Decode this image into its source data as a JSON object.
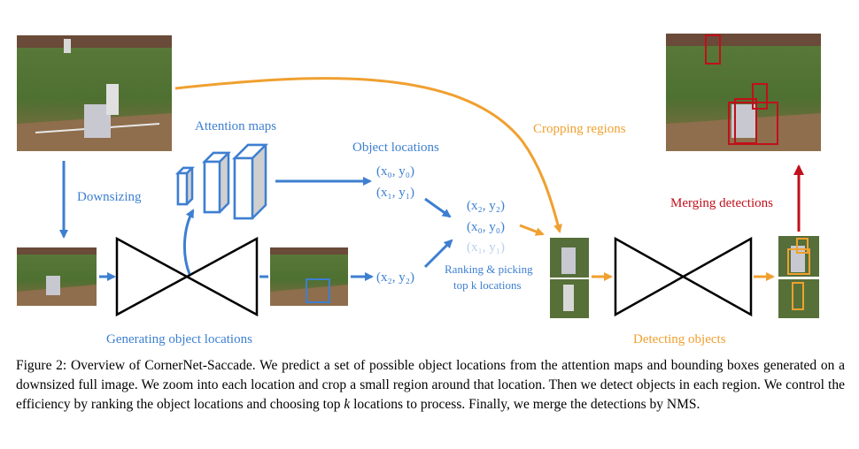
{
  "labels": {
    "downsizing": "Downsizing",
    "attention_maps": "Attention maps",
    "object_locations": "Object locations",
    "cropping_regions": "Cropping regions",
    "merging_detections": "Merging detections",
    "ranking_line1": "Ranking & picking",
    "ranking_line2": "top k locations",
    "generating_object_locations": "Generating object locations",
    "detecting_objects": "Detecting objects"
  },
  "locations": {
    "x0y0": "(x₀, y₀)",
    "x1y1": "(x₁, y₁)",
    "x2y2": "(x₂, y₂)",
    "ranked_x2y2": "(x₂, y₂)",
    "ranked_x0y0": "(x₀, y₀)",
    "ranked_x1y1": "(x₁, y₁)"
  },
  "caption": {
    "prefix": "Figure 2: Overview of CornerNet-Saccade. We predict a set of possible object locations from the attention maps and bounding boxes generated on a downsized full image. We zoom into each location and crop a small region around that location. Then we detect objects in each region. We control the efficiency by ranking the object locations and choosing top ",
    "k": "k",
    "suffix": " locations to process. Finally, we merge the detections by NMS."
  },
  "colors": {
    "blue": "#3d7fd1",
    "orange": "#f0a030",
    "red": "#c0101a",
    "faint_blue": "#b9cfee"
  }
}
